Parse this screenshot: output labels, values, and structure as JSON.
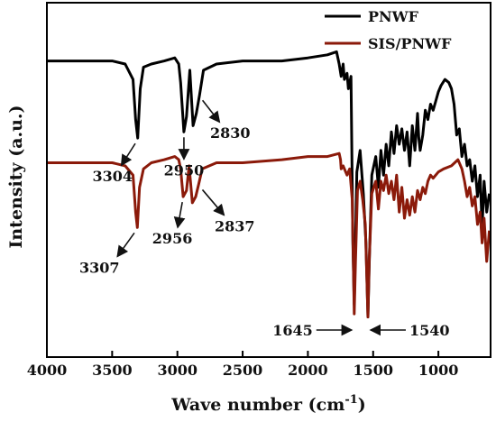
{
  "chart_data": {
    "type": "line",
    "title": "",
    "xlabel": "Wave number (cm",
    "xlabel_sup": "-1",
    "xlabel_close": ")",
    "ylabel": "Intensity (a.u.)",
    "xlim": [
      4000,
      600
    ],
    "x_reversed": true,
    "xticks": [
      4000,
      3500,
      3000,
      2500,
      2000,
      1500,
      1000
    ],
    "grid": false,
    "legend_position": "top-right",
    "legend": [
      {
        "name": "PNWF",
        "color": "#000000"
      },
      {
        "name": "SIS/PNWF",
        "color": "#8B1A0A"
      }
    ],
    "series": [
      {
        "name": "PNWF",
        "color": "#000000",
        "x": [
          4000,
          3700,
          3500,
          3400,
          3340,
          3320,
          3304,
          3285,
          3260,
          3200,
          3100,
          3020,
          2990,
          2975,
          2950,
          2930,
          2905,
          2880,
          2855,
          2830,
          2800,
          2700,
          2500,
          2200,
          2000,
          1850,
          1780,
          1760,
          1745,
          1730,
          1720,
          1700,
          1690,
          1670,
          1655,
          1645,
          1638,
          1625,
          1600,
          1575,
          1555,
          1540,
          1528,
          1510,
          1480,
          1460,
          1440,
          1420,
          1400,
          1380,
          1360,
          1340,
          1320,
          1300,
          1280,
          1260,
          1240,
          1220,
          1200,
          1180,
          1160,
          1150,
          1140,
          1120,
          1100,
          1080,
          1060,
          1040,
          1020,
          1000,
          980,
          950,
          920,
          900,
          880,
          860,
          840,
          820,
          800,
          780,
          760,
          740,
          720,
          700,
          680,
          665,
          650,
          630,
          610
        ],
        "values": [
          89,
          89,
          89,
          88,
          83,
          70,
          64,
          80,
          87,
          88,
          89,
          90,
          88,
          82,
          66,
          71,
          86,
          68,
          72,
          78,
          86,
          88,
          89,
          89,
          90,
          91,
          92,
          88,
          84,
          88,
          83,
          85,
          80,
          84,
          30,
          10,
          24,
          53,
          60,
          46,
          30,
          6,
          26,
          52,
          58,
          48,
          60,
          52,
          62,
          55,
          66,
          59,
          68,
          62,
          67,
          60,
          66,
          55,
          68,
          60,
          72,
          64,
          60,
          65,
          73,
          70,
          75,
          73,
          76,
          79,
          81,
          83,
          82,
          80,
          75,
          65,
          67,
          58,
          62,
          55,
          57,
          50,
          55,
          45,
          52,
          35,
          50,
          40,
          46
        ]
      },
      {
        "name": "SIS/PNWF",
        "color": "#8B1A0A",
        "x": [
          4000,
          3700,
          3500,
          3400,
          3340,
          3320,
          3307,
          3290,
          3260,
          3200,
          3100,
          3020,
          2990,
          2975,
          2956,
          2930,
          2910,
          2885,
          2860,
          2837,
          2810,
          2700,
          2500,
          2200,
          2000,
          1850,
          1760,
          1750,
          1745,
          1730,
          1700,
          1680,
          1660,
          1645,
          1635,
          1620,
          1600,
          1580,
          1560,
          1540,
          1530,
          1510,
          1480,
          1460,
          1440,
          1420,
          1400,
          1380,
          1360,
          1340,
          1320,
          1300,
          1280,
          1260,
          1240,
          1220,
          1200,
          1180,
          1160,
          1140,
          1120,
          1100,
          1080,
          1060,
          1040,
          1000,
          960,
          900,
          850,
          820,
          800,
          780,
          760,
          740,
          720,
          700,
          680,
          665,
          650,
          630,
          610
        ],
        "values": [
          56,
          56,
          56,
          55,
          52,
          40,
          35,
          48,
          54,
          56,
          57,
          58,
          57,
          54,
          45,
          47,
          55,
          43,
          45,
          49,
          54,
          56,
          56,
          57,
          58,
          58,
          59,
          57,
          54,
          55,
          52,
          54,
          44,
          7,
          24,
          47,
          50,
          44,
          36,
          6,
          24,
          46,
          50,
          41,
          50,
          47,
          52,
          46,
          50,
          44,
          52,
          40,
          48,
          38,
          44,
          39,
          45,
          40,
          47,
          44,
          48,
          46,
          50,
          52,
          51,
          53,
          54,
          55,
          57,
          54,
          50,
          45,
          48,
          42,
          45,
          36,
          40,
          30,
          38,
          24,
          34
        ]
      }
    ],
    "annotations": [
      {
        "label": "3304",
        "series": "PNWF",
        "x": 3304
      },
      {
        "label": "2950",
        "series": "PNWF",
        "x": 2950
      },
      {
        "label": "2830",
        "series": "PNWF",
        "x": 2830
      },
      {
        "label": "3307",
        "series": "SIS/PNWF",
        "x": 3307
      },
      {
        "label": "2956",
        "series": "SIS/PNWF",
        "x": 2956
      },
      {
        "label": "2837",
        "series": "SIS/PNWF",
        "x": 2837
      },
      {
        "label": "1645",
        "series": "both",
        "x": 1645
      },
      {
        "label": "1540",
        "series": "both",
        "x": 1540
      }
    ]
  }
}
